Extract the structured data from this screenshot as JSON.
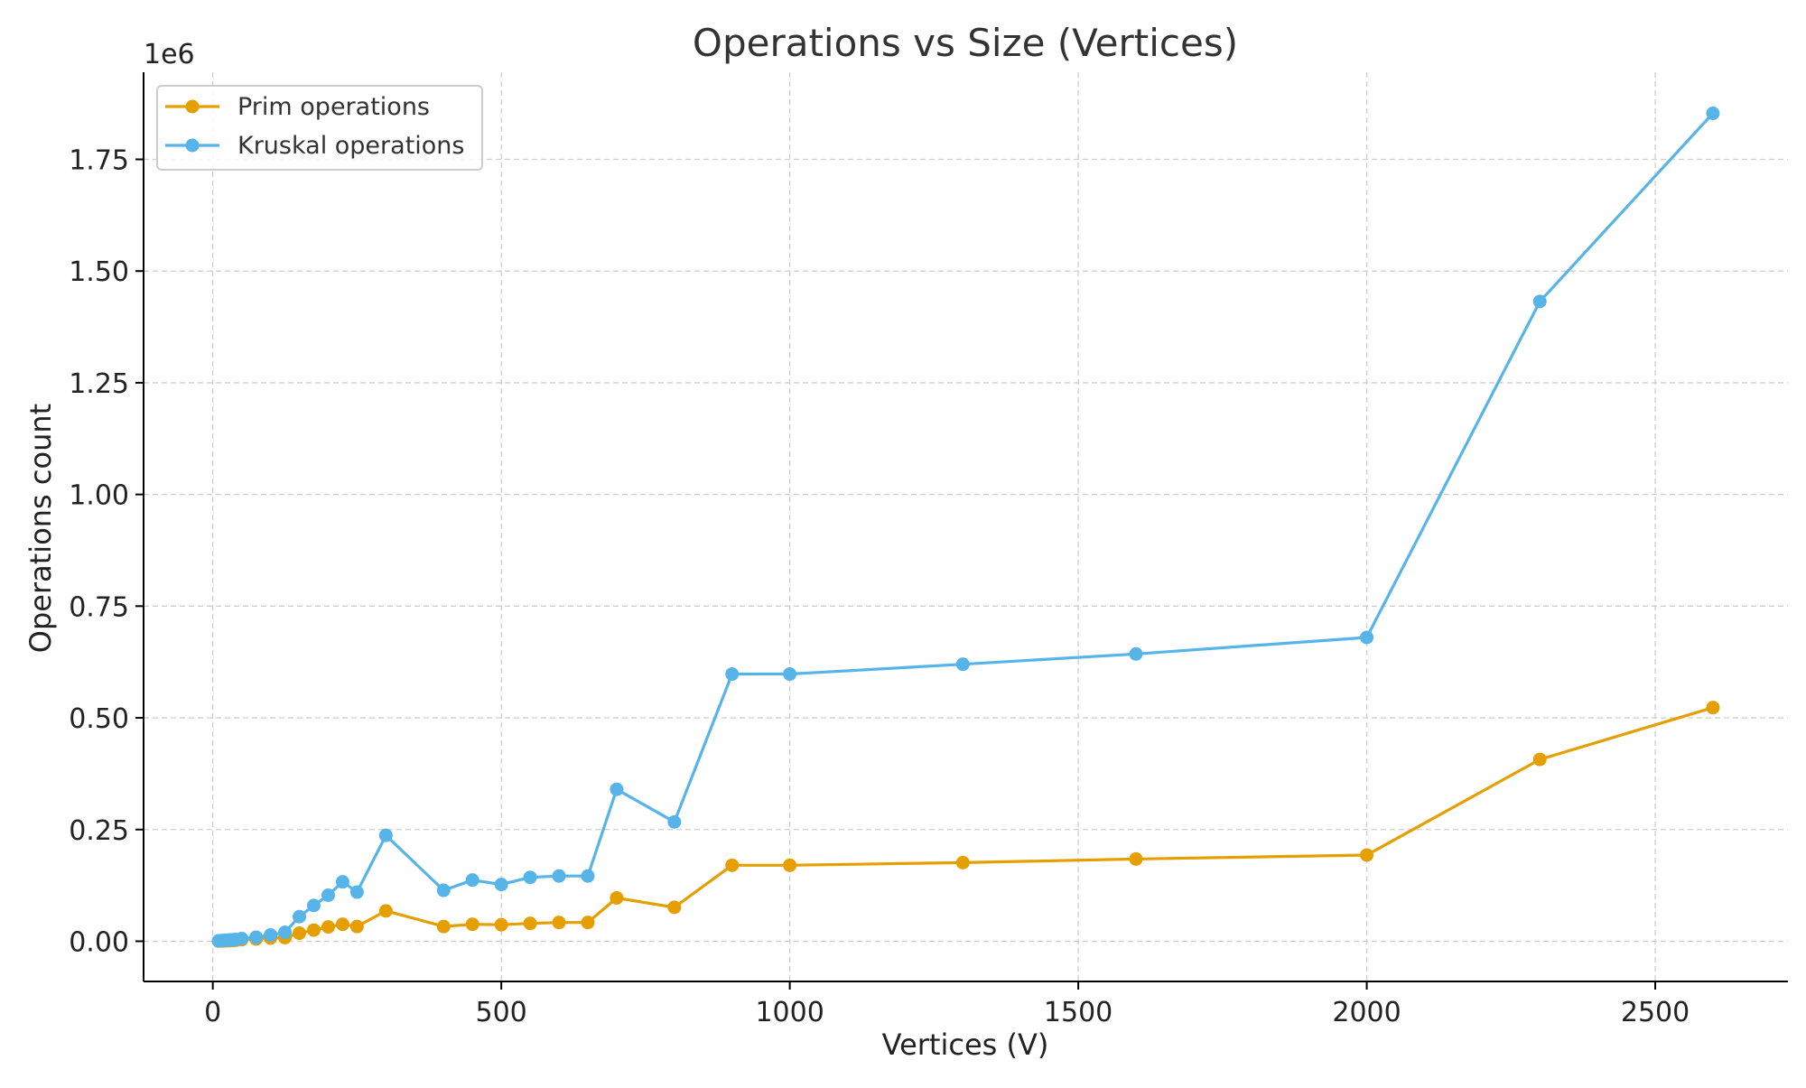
{
  "chart_data": {
    "type": "line",
    "title": "Operations vs Size (Vertices)",
    "xlabel": "Vertices (V)",
    "ylabel": "Operations count",
    "y_offset_label": "1e6",
    "y_scale_factor": 1000000,
    "xlim": [
      -120,
      2730
    ],
    "ylim": [
      -90000,
      1945000
    ],
    "x_ticks": [
      0,
      500,
      1000,
      1500,
      2000,
      2500
    ],
    "x_tick_labels": [
      "0",
      "500",
      "1000",
      "1500",
      "2000",
      "2500"
    ],
    "y_ticks": [
      0,
      250000,
      500000,
      750000,
      1000000,
      1250000,
      1500000,
      1750000
    ],
    "y_tick_labels": [
      "0.00",
      "0.25",
      "0.50",
      "0.75",
      "1.00",
      "1.25",
      "1.50",
      "1.75"
    ],
    "grid": true,
    "legend_position": "top-left",
    "x": [
      10,
      15,
      20,
      25,
      30,
      35,
      40,
      50,
      75,
      100,
      125,
      150,
      175,
      200,
      225,
      250,
      300,
      400,
      450,
      500,
      550,
      600,
      650,
      700,
      800,
      900,
      1000,
      1300,
      1600,
      2000,
      2300,
      2600
    ],
    "series": [
      {
        "name": "Prim operations",
        "color": "#E69F00",
        "values": [
          400,
          600,
          900,
          1200,
          1500,
          1800,
          2200,
          3500,
          5000,
          7000,
          8000,
          18000,
          25000,
          32000,
          38000,
          33000,
          68000,
          33000,
          38000,
          37000,
          40000,
          42000,
          42000,
          97000,
          76000,
          170000,
          170000,
          176000,
          184000,
          193000,
          407000,
          523000
        ]
      },
      {
        "name": "Kruskal operations",
        "color": "#56B4E9",
        "values": [
          1000,
          1500,
          2000,
          2500,
          3000,
          3500,
          4000,
          6000,
          9000,
          14000,
          20000,
          55000,
          80000,
          103000,
          133000,
          110000,
          237000,
          114000,
          137000,
          127000,
          143000,
          146000,
          146000,
          340000,
          267000,
          598000,
          598000,
          620000,
          643000,
          680000,
          1432000,
          1853000
        ]
      }
    ]
  }
}
